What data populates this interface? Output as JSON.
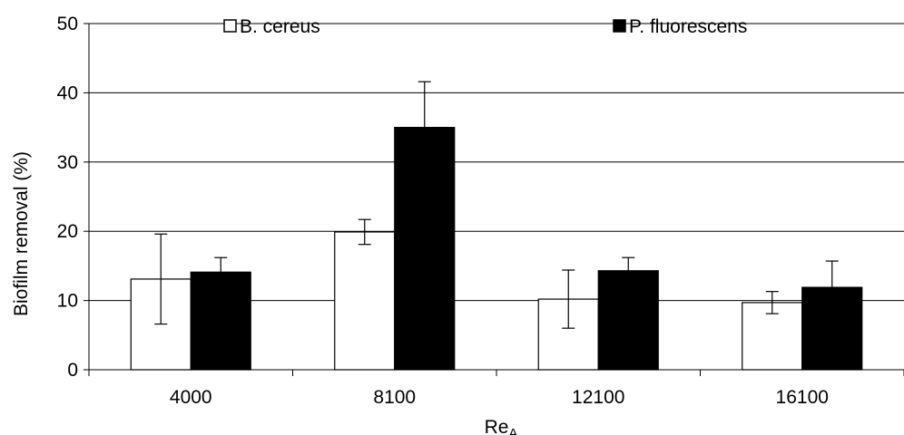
{
  "chart_data": {
    "type": "bar",
    "title": "",
    "xlabel": "Re",
    "xlabel_sub": "A",
    "ylabel": "Biofilm removal (%)",
    "ylim": [
      0,
      50
    ],
    "yticks": [
      0,
      10,
      20,
      30,
      40,
      50
    ],
    "grid": "horizontal",
    "legend_position": "top",
    "categories": [
      "4000",
      "8100",
      "12100",
      "16100"
    ],
    "series": [
      {
        "name": "B. cereus",
        "color": "#ffffff",
        "values": [
          13.1,
          19.9,
          10.2,
          9.7
        ],
        "errors": [
          6.5,
          1.8,
          4.2,
          1.6
        ]
      },
      {
        "name": "P. fluorescens",
        "color": "#000000",
        "values": [
          14.1,
          35.0,
          14.3,
          11.9
        ],
        "errors": [
          2.1,
          6.6,
          1.9,
          3.8
        ]
      }
    ]
  }
}
